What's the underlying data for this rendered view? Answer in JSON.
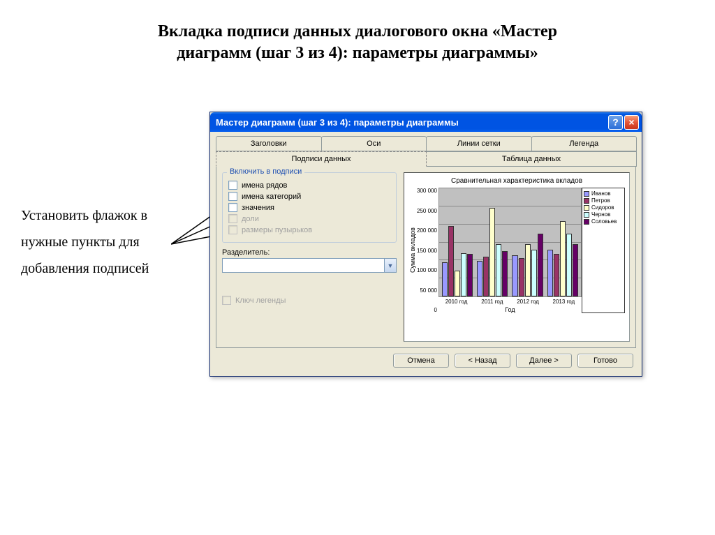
{
  "page_title_line1": "Вкладка подписи данных диалогового окна «Мастер",
  "page_title_line2": "диаграмм (шаг 3 из 4): параметры диаграммы»",
  "annotation": "Установить флажок в нужные пункты для добавления подписей",
  "dialog": {
    "title": "Мастер диаграмм (шаг 3 из 4): параметры диаграммы",
    "tabs_row1": [
      "Заголовки",
      "Оси",
      "Линии сетки",
      "Легенда"
    ],
    "tabs_row2": [
      "Подписи данных",
      "Таблица данных"
    ],
    "active_tab": "Подписи данных",
    "group_title": "Включить в подписи",
    "checkboxes": [
      {
        "label": "имена рядов",
        "enabled": true
      },
      {
        "label": "имена категорий",
        "enabled": true
      },
      {
        "label": "значения",
        "enabled": true
      },
      {
        "label": "доли",
        "enabled": false
      },
      {
        "label": "размеры пузырьков",
        "enabled": false
      }
    ],
    "separator_label": "Разделитель:",
    "legend_key_label": "Ключ легенды",
    "buttons": {
      "cancel": "Отмена",
      "back": "< Назад",
      "next": "Далее >",
      "finish": "Готово"
    }
  },
  "chart": {
    "title": "Сравнительная характеристика вкладов",
    "ylabel": "Сумма вкладов",
    "xlabel": "Год",
    "categories": [
      "2010 год",
      "2011 год",
      "2012 год",
      "2013 год"
    ],
    "ymax": 300000,
    "ytick_step": 50000,
    "yticks": [
      "300 000",
      "250 000",
      "200 000",
      "150 000",
      "100 000",
      "50 000",
      "0"
    ],
    "series": [
      {
        "name": "Иванов",
        "color": "#9999ff"
      },
      {
        "name": "Петров",
        "color": "#993366"
      },
      {
        "name": "Сидоров",
        "color": "#ffffcc"
      },
      {
        "name": "Чернов",
        "color": "#ccffff"
      },
      {
        "name": "Соловьев",
        "color": "#660066"
      }
    ],
    "values": [
      [
        95000,
        195000,
        72000,
        120000,
        118000
      ],
      [
        98000,
        110000,
        245000,
        145000,
        125000
      ],
      [
        115000,
        107000,
        145000,
        130000,
        175000
      ],
      [
        130000,
        118000,
        210000,
        175000,
        145000
      ]
    ],
    "plot_bg": "#c0c0c0",
    "grid_color": "#888888"
  }
}
